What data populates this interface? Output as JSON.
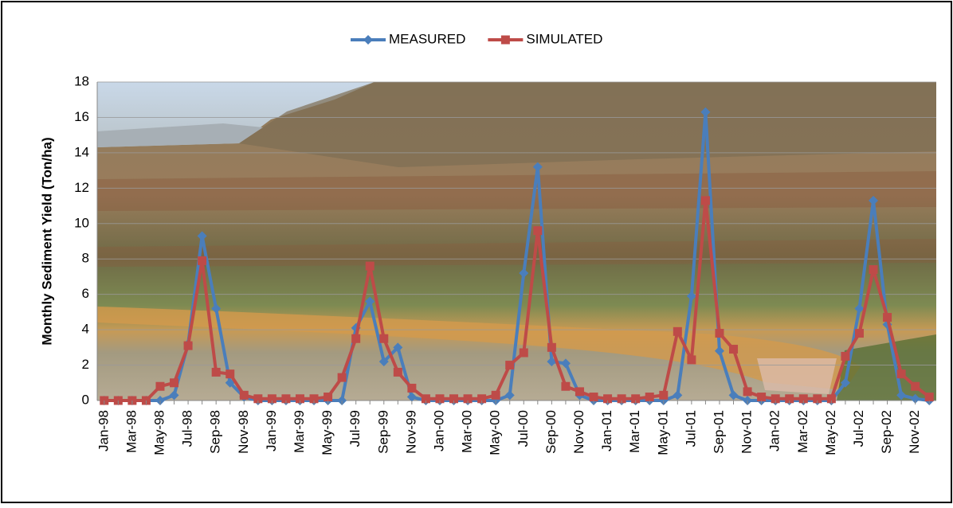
{
  "chart_data": {
    "type": "line",
    "y_label": "Monthly Sediment Yield (Ton/ha)",
    "categories": [
      "Jan-98",
      null,
      "Mar-98",
      null,
      "May-98",
      null,
      "Jul-98",
      null,
      "Sep-98",
      null,
      "Nov-98",
      null,
      "Jan-99",
      null,
      "Mar-99",
      null,
      "May-99",
      null,
      "Jul-99",
      null,
      "Sep-99",
      null,
      "Nov-99",
      null,
      "Jan-00",
      null,
      "Mar-00",
      null,
      "May-00",
      null,
      "Jul-00",
      null,
      "Sep-00",
      null,
      "Nov-00",
      null,
      "Jan-01",
      null,
      "Mar-01",
      null,
      "May-01",
      null,
      "Jul-01",
      null,
      "Sep-01",
      null,
      "Nov-01",
      null,
      "Jan-02",
      null,
      "Mar-02",
      null,
      "May-02",
      null,
      "Jul-02",
      null,
      "Sep-02",
      null,
      "Nov-02",
      null
    ],
    "series": [
      {
        "name": "MEASURED",
        "color": "#4a7ebb",
        "marker": "diamond",
        "values": [
          0,
          0,
          0,
          0,
          0,
          0.3,
          3.2,
          9.3,
          5.2,
          1.0,
          0.2,
          0,
          0,
          0,
          0,
          0,
          0,
          0,
          4.1,
          5.6,
          2.2,
          3.0,
          0.2,
          0,
          0,
          0,
          0,
          0,
          0,
          0.3,
          7.2,
          13.2,
          2.2,
          2.1,
          0.3,
          0,
          0,
          0,
          0,
          0,
          0,
          0.3,
          5.9,
          16.3,
          2.8,
          0.3,
          0,
          0,
          0,
          0,
          0,
          0,
          0,
          1.0,
          5.2,
          11.3,
          4.3,
          0.3,
          0.1,
          0
        ]
      },
      {
        "name": "SIMULATED",
        "color": "#be4b48",
        "marker": "square",
        "values": [
          0,
          0,
          0,
          0,
          0.8,
          1.0,
          3.1,
          7.9,
          1.6,
          1.5,
          0.3,
          0.1,
          0.1,
          0.1,
          0.1,
          0.1,
          0.2,
          1.3,
          3.5,
          7.6,
          3.5,
          1.6,
          0.7,
          0.1,
          0.1,
          0.1,
          0.1,
          0.1,
          0.3,
          2.0,
          2.7,
          9.6,
          3.0,
          0.8,
          0.5,
          0.2,
          0.1,
          0.1,
          0.1,
          0.2,
          0.3,
          3.9,
          2.3,
          11.3,
          3.8,
          2.9,
          0.5,
          0.2,
          0.1,
          0.1,
          0.1,
          0.1,
          0.1,
          2.5,
          3.8,
          7.4,
          4.7,
          1.5,
          0.8,
          0.2
        ]
      }
    ],
    "ylim": [
      0,
      18
    ],
    "yticks": [
      0,
      2,
      4,
      6,
      8,
      10,
      12,
      14,
      16,
      18
    ],
    "grid": true,
    "legend": "top"
  }
}
